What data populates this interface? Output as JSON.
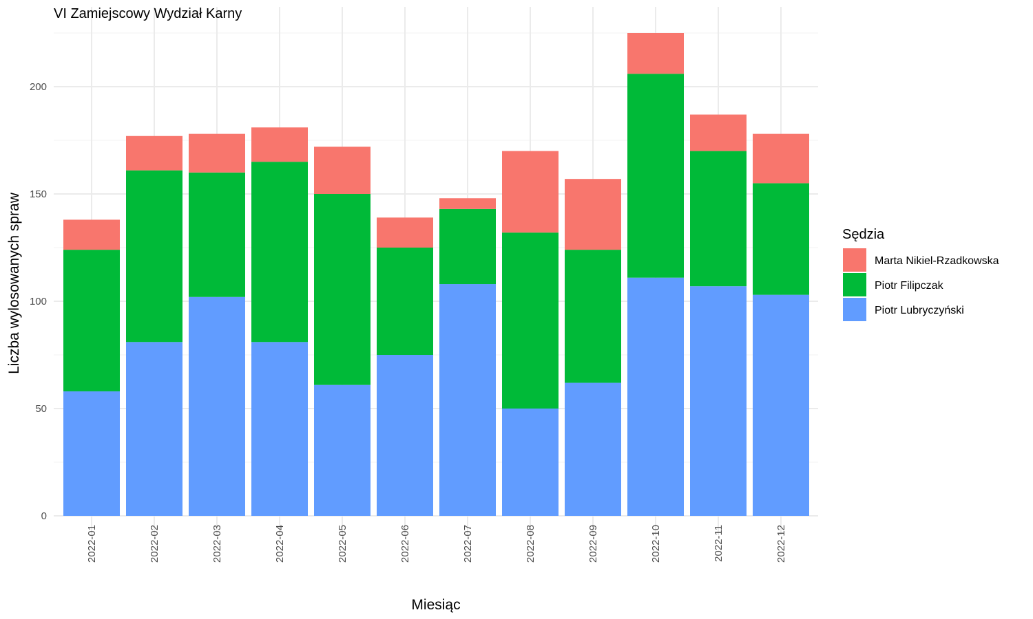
{
  "chart_data": {
    "type": "bar",
    "stacked": true,
    "title": "VI Zamiejscowy Wydział Karny",
    "xlabel": "Miesiąc",
    "ylabel": "Liczba wylosowanych spraw",
    "ylim": [
      0,
      225
    ],
    "yticks": [
      0,
      50,
      100,
      150,
      200
    ],
    "grid": true,
    "legend": {
      "title": "Sędzia",
      "position": "right"
    },
    "categories": [
      "2022-01",
      "2022-02",
      "2022-03",
      "2022-04",
      "2022-05",
      "2022-06",
      "2022-07",
      "2022-08",
      "2022-09",
      "2022-10",
      "2022-11",
      "2022-12"
    ],
    "series": [
      {
        "name": "Piotr Lubryczyński",
        "color": "#619CFF",
        "values": [
          58,
          81,
          102,
          81,
          61,
          75,
          108,
          50,
          62,
          111,
          107,
          103
        ]
      },
      {
        "name": "Piotr Filipczak",
        "color": "#00BA38",
        "values": [
          66,
          80,
          58,
          84,
          89,
          50,
          35,
          82,
          62,
          95,
          63,
          52
        ]
      },
      {
        "name": "Marta Nikiel-Rzadkowska",
        "color": "#F8766D",
        "values": [
          14,
          16,
          18,
          16,
          22,
          14,
          5,
          38,
          33,
          19,
          17,
          23
        ]
      }
    ],
    "legend_order": [
      "Marta Nikiel-Rzadkowska",
      "Piotr Filipczak",
      "Piotr Lubryczyński"
    ]
  }
}
